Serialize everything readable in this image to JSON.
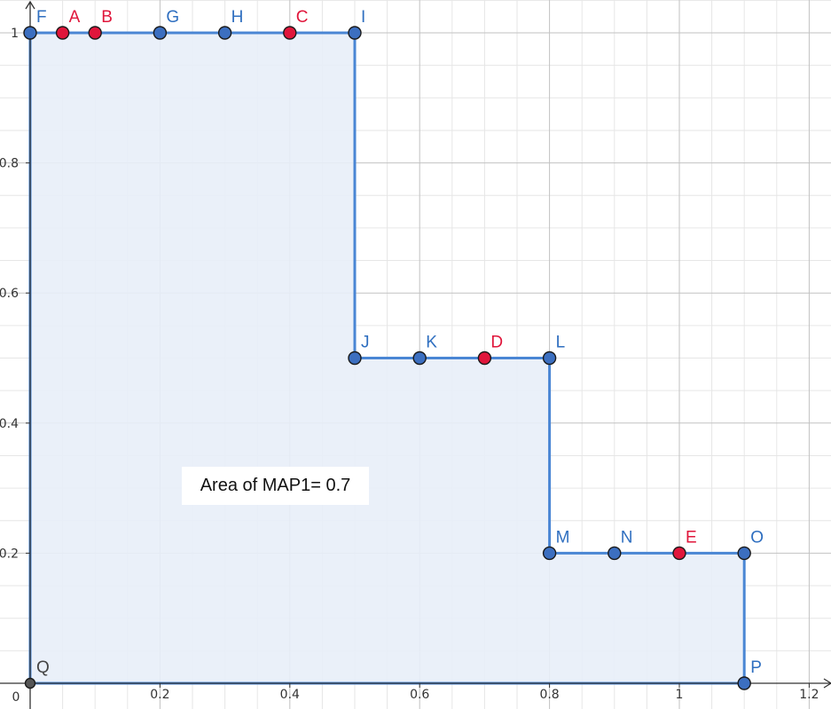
{
  "chart_data": {
    "type": "area",
    "xlim": [
      0,
      1.2
    ],
    "ylim": [
      0,
      1
    ],
    "x_ticks": [
      "0.2",
      "0.4",
      "0.6",
      "0.8",
      "1",
      "1.2"
    ],
    "y_ticks": [
      "0.2",
      "0.4",
      "0.6",
      "0.8",
      "1"
    ],
    "origin_label": "0",
    "grid": true,
    "polygon": [
      "Q",
      "F",
      "I",
      "J",
      "L",
      "M",
      "O",
      "P"
    ],
    "points": [
      {
        "label": "F",
        "x": 0,
        "y": 1,
        "color": "blue"
      },
      {
        "label": "A",
        "x": 0.05,
        "y": 1,
        "color": "red"
      },
      {
        "label": "B",
        "x": 0.1,
        "y": 1,
        "color": "red"
      },
      {
        "label": "G",
        "x": 0.2,
        "y": 1,
        "color": "blue"
      },
      {
        "label": "H",
        "x": 0.3,
        "y": 1,
        "color": "blue"
      },
      {
        "label": "C",
        "x": 0.4,
        "y": 1,
        "color": "red"
      },
      {
        "label": "I",
        "x": 0.5,
        "y": 1,
        "color": "blue"
      },
      {
        "label": "J",
        "x": 0.5,
        "y": 0.5,
        "color": "blue"
      },
      {
        "label": "K",
        "x": 0.6,
        "y": 0.5,
        "color": "blue"
      },
      {
        "label": "D",
        "x": 0.7,
        "y": 0.5,
        "color": "red"
      },
      {
        "label": "L",
        "x": 0.8,
        "y": 0.5,
        "color": "blue"
      },
      {
        "label": "M",
        "x": 0.8,
        "y": 0.2,
        "color": "blue"
      },
      {
        "label": "N",
        "x": 0.9,
        "y": 0.2,
        "color": "blue"
      },
      {
        "label": "E",
        "x": 1.0,
        "y": 0.2,
        "color": "red"
      },
      {
        "label": "O",
        "x": 1.1,
        "y": 0.2,
        "color": "blue"
      },
      {
        "label": "P",
        "x": 1.1,
        "y": 0,
        "color": "blue"
      },
      {
        "label": "Q",
        "x": 0,
        "y": 0,
        "color": "gray"
      }
    ]
  },
  "colors": {
    "blue": "#3c6fc0",
    "red": "#e0163b",
    "gray": "#555555",
    "line": "#4a86d4",
    "fill": "#e8eef8",
    "label_blue": "#2f6fc0",
    "label_red": "#e0163b",
    "label_gray": "#444444"
  },
  "annotation": {
    "text": "Area of MAP1= 0.7"
  }
}
